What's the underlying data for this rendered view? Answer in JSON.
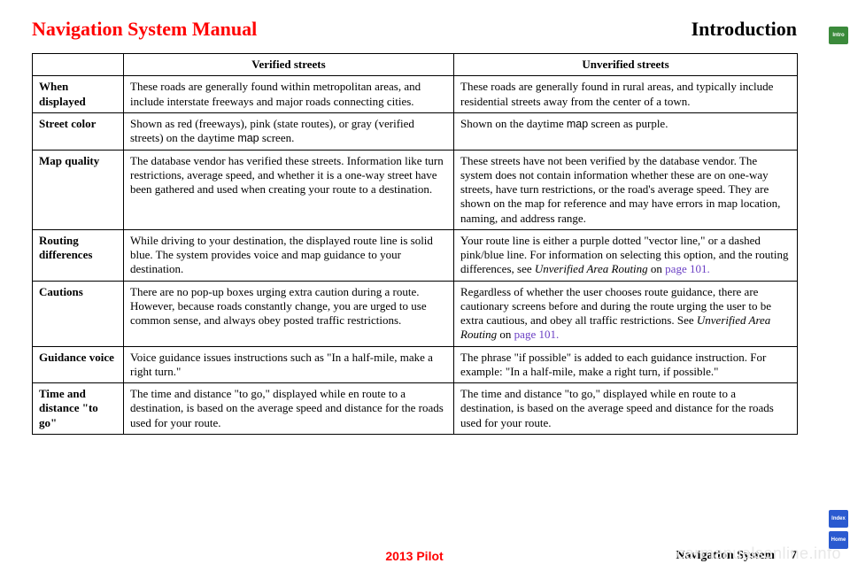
{
  "header": {
    "left": "Navigation System Manual",
    "right": "Introduction"
  },
  "tabs": {
    "intro": "Intro",
    "index": "Index",
    "home": "Home"
  },
  "columns": {
    "verified": "Verified streets",
    "unverified": "Unverified streets"
  },
  "rows": {
    "when": {
      "label": "When displayed",
      "v": "These roads are generally found within metropolitan areas, and include interstate freeways and major roads connecting cities.",
      "u": "These roads are generally found in rural areas, and typically include residential streets away from the center of a town."
    },
    "color": {
      "label": "Street color",
      "v_before": "Shown as red (freeways), pink (state routes), or gray (verified streets) on the daytime ",
      "v_map": "map",
      "v_after": " screen.",
      "u_before": "Shown on the daytime ",
      "u_map": "map",
      "u_after": " screen as purple."
    },
    "quality": {
      "label": "Map quality",
      "v": "The database vendor has verified these streets. Information like turn restrictions, average speed, and whether it is a one-way street have been gathered and used when creating your route to a destination.",
      "u": "These streets have not been verified by the database vendor. The system does not contain information whether these are on one-way streets, have turn restrictions, or the road's average speed. They are shown on the map for reference and may have errors in map location, naming, and address range."
    },
    "routing": {
      "label": "Routing differences",
      "v": "While driving to your destination, the displayed route line is solid blue. The system provides voice and map guidance to your destination.",
      "u_before": "Your route line is either a purple dotted \"vector line,\" or a dashed pink/blue line. For information on selecting this option, and the routing differences, see ",
      "u_ital": "Unverified Area Routing",
      "u_mid": " on ",
      "u_link": "page 101."
    },
    "cautions": {
      "label": "Cautions",
      "v": "There are no pop-up boxes urging extra caution during a route. However, because roads constantly change, you are urged to use common sense, and always obey posted traffic restrictions.",
      "u_before": "Regardless of whether the user chooses route guidance, there are cautionary screens before and during the route urging the user to be extra cautious, and obey all traffic restrictions. See ",
      "u_ital": "Unverified Area Routing",
      "u_mid": " on ",
      "u_link": "page 101."
    },
    "voice": {
      "label": "Guidance voice",
      "v": "Voice guidance issues instructions such as \"In a half-mile, make a right turn.\"",
      "u": "The phrase \"if possible\" is added to each guidance instruction. For example: \"In a half-mile, make a right turn, if possible.\""
    },
    "time": {
      "label": "Time and distance \"to go\"",
      "v": "The time and distance \"to go,\" displayed while en route to a destination, is based on the average speed and distance for the roads used for your route.",
      "u": "The time and distance \"to go,\" displayed while en route to a destination, is based on the average speed and distance for the roads used for your route."
    }
  },
  "footer": {
    "center": "2013 Pilot",
    "right": "Navigation System",
    "page": "7"
  },
  "watermark": "carmanualsonline.info"
}
